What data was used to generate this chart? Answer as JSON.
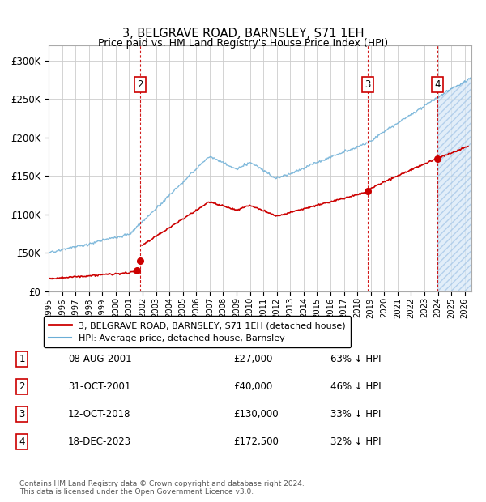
{
  "title": "3, BELGRAVE ROAD, BARNSLEY, S71 1EH",
  "subtitle": "Price paid vs. HM Land Registry's House Price Index (HPI)",
  "ylim": [
    0,
    320000
  ],
  "yticks": [
    0,
    50000,
    100000,
    150000,
    200000,
    250000,
    300000
  ],
  "ytick_labels": [
    "£0",
    "£50K",
    "£100K",
    "£150K",
    "£200K",
    "£250K",
    "£300K"
  ],
  "hpi_color": "#6baed6",
  "price_color": "#cc0000",
  "vline_color": "#cc0000",
  "bg_color": "#ffffff",
  "grid_color": "#cccccc",
  "sales": [
    {
      "date_decimal": 2001.6,
      "price": 27000,
      "label": "1"
    },
    {
      "date_decimal": 2001.83,
      "price": 40000,
      "label": "2"
    },
    {
      "date_decimal": 2018.78,
      "price": 130000,
      "label": "3"
    },
    {
      "date_decimal": 2023.96,
      "price": 172500,
      "label": "4"
    }
  ],
  "chart_label_sales": [
    {
      "num": "2",
      "x": 2001.83
    },
    {
      "num": "3",
      "x": 2018.78
    },
    {
      "num": "4",
      "x": 2023.96
    }
  ],
  "sale_annotations": [
    {
      "num": "1",
      "date": "08-AUG-2001",
      "price": "£27,000",
      "pct": "63% ↓ HPI"
    },
    {
      "num": "2",
      "date": "31-OCT-2001",
      "price": "£40,000",
      "pct": "46% ↓ HPI"
    },
    {
      "num": "3",
      "date": "12-OCT-2018",
      "price": "£130,000",
      "pct": "33% ↓ HPI"
    },
    {
      "num": "4",
      "date": "18-DEC-2023",
      "price": "£172,500",
      "pct": "32% ↓ HPI"
    }
  ],
  "legend_entries": [
    {
      "label": "3, BELGRAVE ROAD, BARNSLEY, S71 1EH (detached house)",
      "color": "#cc0000",
      "lw": 2
    },
    {
      "label": "HPI: Average price, detached house, Barnsley",
      "color": "#6baed6",
      "lw": 1.5
    }
  ],
  "footer": "Contains HM Land Registry data © Crown copyright and database right 2024.\nThis data is licensed under the Open Government Licence v3.0.",
  "xmin": 1995.0,
  "xmax": 2026.5,
  "last_sale_x": 2023.96,
  "segments": [
    {
      "start": 1995.0,
      "end": 2001.6,
      "sale_time": 2001.6,
      "sale_price": 27000
    },
    {
      "start": 2001.6,
      "end": 2001.83,
      "sale_time": 2001.83,
      "sale_price": 40000
    },
    {
      "start": 2001.83,
      "end": 2018.78,
      "sale_time": 2018.78,
      "sale_price": 130000
    },
    {
      "start": 2018.78,
      "end": 2026.3,
      "sale_time": 2023.96,
      "sale_price": 172500
    }
  ]
}
